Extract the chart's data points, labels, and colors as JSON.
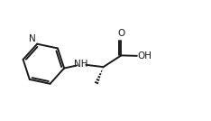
{
  "background": "#ffffff",
  "line_color": "#1a1a1a",
  "line_width": 1.4,
  "font_size": 7.5,
  "figsize": [
    2.34,
    1.34
  ],
  "dpi": 100,
  "xlim": [
    0,
    10
  ],
  "ylim": [
    0,
    5.72
  ]
}
